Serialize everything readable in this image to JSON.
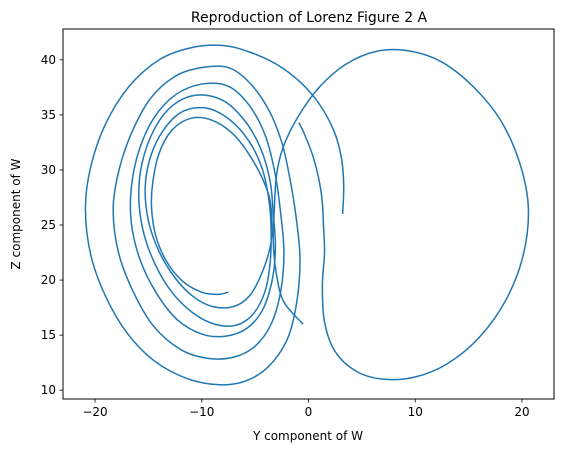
{
  "chart_data": {
    "type": "line",
    "title": "Reproduction of Lorenz Figure 2 A",
    "xlabel": "Y component of W",
    "ylabel": "Z component of W",
    "xlim": [
      -23,
      23
    ],
    "ylim": [
      9.2,
      42.8
    ],
    "xticks": [
      -20,
      -10,
      0,
      10,
      20
    ],
    "yticks": [
      10,
      15,
      20,
      25,
      30,
      35,
      40
    ],
    "grid": false,
    "line_color": "#1f77b4",
    "series": [
      {
        "points": [
          [
            3.2,
            26.0
          ],
          [
            3.3,
            28.5
          ],
          [
            3.1,
            31.0
          ],
          [
            2.4,
            33.5
          ],
          [
            1.0,
            36.0
          ],
          [
            -0.8,
            38.0
          ],
          [
            -3.0,
            39.6
          ],
          [
            -5.5,
            40.7
          ],
          [
            -8.0,
            41.3
          ],
          [
            -11.0,
            41.1
          ],
          [
            -14.0,
            40.0
          ],
          [
            -16.8,
            37.6
          ],
          [
            -19.0,
            34.2
          ],
          [
            -20.4,
            30.3
          ],
          [
            -20.9,
            26.5
          ],
          [
            -20.4,
            22.3
          ],
          [
            -19.0,
            18.5
          ],
          [
            -17.0,
            15.2
          ],
          [
            -14.5,
            12.7
          ],
          [
            -11.5,
            11.1
          ],
          [
            -8.5,
            10.5
          ],
          [
            -6.0,
            10.8
          ],
          [
            -3.8,
            12.1
          ],
          [
            -2.0,
            14.6
          ],
          [
            -1.1,
            18.0
          ],
          [
            -0.8,
            22.0
          ],
          [
            -1.2,
            26.0
          ],
          [
            -1.8,
            29.5
          ],
          [
            -2.5,
            32.5
          ],
          [
            -3.7,
            35.4
          ],
          [
            -5.5,
            37.9
          ],
          [
            -7.5,
            39.3
          ],
          [
            -10.0,
            39.3
          ],
          [
            -12.5,
            38.5
          ],
          [
            -14.8,
            36.5
          ],
          [
            -16.6,
            33.3
          ],
          [
            -17.8,
            29.8
          ],
          [
            -18.3,
            26.4
          ],
          [
            -17.8,
            22.5
          ],
          [
            -16.4,
            18.9
          ],
          [
            -14.5,
            15.8
          ],
          [
            -12.0,
            13.7
          ],
          [
            -9.5,
            12.9
          ],
          [
            -7.0,
            13.0
          ],
          [
            -5.0,
            14.0
          ],
          [
            -3.5,
            16.0
          ],
          [
            -2.6,
            19.0
          ],
          [
            -2.3,
            22.5
          ],
          [
            -2.6,
            26.0
          ],
          [
            -3.1,
            29.5
          ],
          [
            -4.0,
            33.0
          ],
          [
            -5.5,
            35.8
          ],
          [
            -7.5,
            37.6
          ],
          [
            -10.0,
            37.8
          ],
          [
            -12.5,
            36.8
          ],
          [
            -14.5,
            34.7
          ],
          [
            -15.9,
            31.7
          ],
          [
            -16.6,
            28.4
          ],
          [
            -16.6,
            25.2
          ],
          [
            -15.8,
            21.9
          ],
          [
            -14.3,
            18.9
          ],
          [
            -12.3,
            16.4
          ],
          [
            -10.0,
            15.1
          ],
          [
            -7.8,
            14.9
          ],
          [
            -5.8,
            15.6
          ],
          [
            -4.3,
            17.3
          ],
          [
            -3.4,
            20.0
          ],
          [
            -3.1,
            23.0
          ],
          [
            -3.3,
            26.0
          ],
          [
            -3.6,
            29.0
          ],
          [
            -4.5,
            32.0
          ],
          [
            -6.0,
            34.5
          ],
          [
            -8.0,
            36.3
          ],
          [
            -10.5,
            36.8
          ],
          [
            -12.8,
            35.8
          ],
          [
            -14.5,
            33.6
          ],
          [
            -15.6,
            30.6
          ],
          [
            -15.9,
            27.6
          ],
          [
            -15.5,
            24.5
          ],
          [
            -14.4,
            21.5
          ],
          [
            -12.8,
            18.9
          ],
          [
            -10.8,
            17.0
          ],
          [
            -8.8,
            16.0
          ],
          [
            -6.8,
            15.9
          ],
          [
            -5.2,
            16.9
          ],
          [
            -4.1,
            18.9
          ],
          [
            -3.6,
            21.5
          ],
          [
            -3.5,
            24.5
          ],
          [
            -3.7,
            27.2
          ],
          [
            -4.3,
            30.0
          ],
          [
            -5.5,
            32.5
          ],
          [
            -7.3,
            34.5
          ],
          [
            -9.5,
            35.6
          ],
          [
            -11.8,
            35.3
          ],
          [
            -13.6,
            33.6
          ],
          [
            -14.8,
            31.2
          ],
          [
            -15.3,
            28.4
          ],
          [
            -15.0,
            25.4
          ],
          [
            -14.0,
            22.6
          ],
          [
            -12.5,
            20.2
          ],
          [
            -10.8,
            18.5
          ],
          [
            -9.0,
            17.6
          ],
          [
            -7.0,
            17.6
          ],
          [
            -5.5,
            18.6
          ],
          [
            -4.3,
            20.8
          ],
          [
            -3.5,
            23.5
          ],
          [
            -3.5,
            26.5
          ],
          [
            -4.0,
            28.5
          ],
          [
            -5.3,
            31.0
          ],
          [
            -7.0,
            33.2
          ],
          [
            -9.0,
            34.5
          ],
          [
            -11.0,
            34.7
          ],
          [
            -12.8,
            33.6
          ],
          [
            -14.0,
            31.5
          ],
          [
            -14.6,
            28.8
          ],
          [
            -14.7,
            26.5
          ],
          [
            -14.3,
            24.0
          ],
          [
            -13.3,
            21.7
          ],
          [
            -11.8,
            19.9
          ],
          [
            -10.0,
            18.9
          ],
          [
            -8.5,
            18.7
          ],
          [
            -7.5,
            18.9
          ]
        ]
      },
      {
        "points": [
          [
            -0.5,
            16.0
          ],
          [
            -2.3,
            18.0
          ],
          [
            -3.0,
            20.5
          ],
          [
            -3.3,
            23.5
          ],
          [
            -3.2,
            26.5
          ],
          [
            -3.0,
            29.5
          ],
          [
            -2.4,
            32.0
          ],
          [
            -1.0,
            34.8
          ],
          [
            1.0,
            37.5
          ],
          [
            3.5,
            39.6
          ],
          [
            6.5,
            40.8
          ],
          [
            9.5,
            40.8
          ],
          [
            12.5,
            39.8
          ],
          [
            15.5,
            37.5
          ],
          [
            18.0,
            34.5
          ],
          [
            19.8,
            30.6
          ],
          [
            20.6,
            26.5
          ],
          [
            20.1,
            22.2
          ],
          [
            18.5,
            18.2
          ],
          [
            16.0,
            14.8
          ],
          [
            13.0,
            12.4
          ],
          [
            10.0,
            11.2
          ],
          [
            7.0,
            11.0
          ],
          [
            4.5,
            11.7
          ],
          [
            2.5,
            13.5
          ],
          [
            1.5,
            16.2
          ],
          [
            1.3,
            19.5
          ],
          [
            1.5,
            22.5
          ],
          [
            1.4,
            25.0
          ],
          [
            1.3,
            27.0
          ],
          [
            1.0,
            29.0
          ],
          [
            0.4,
            31.3
          ],
          [
            -0.4,
            33.3
          ],
          [
            -0.9,
            34.3
          ]
        ]
      }
    ]
  }
}
